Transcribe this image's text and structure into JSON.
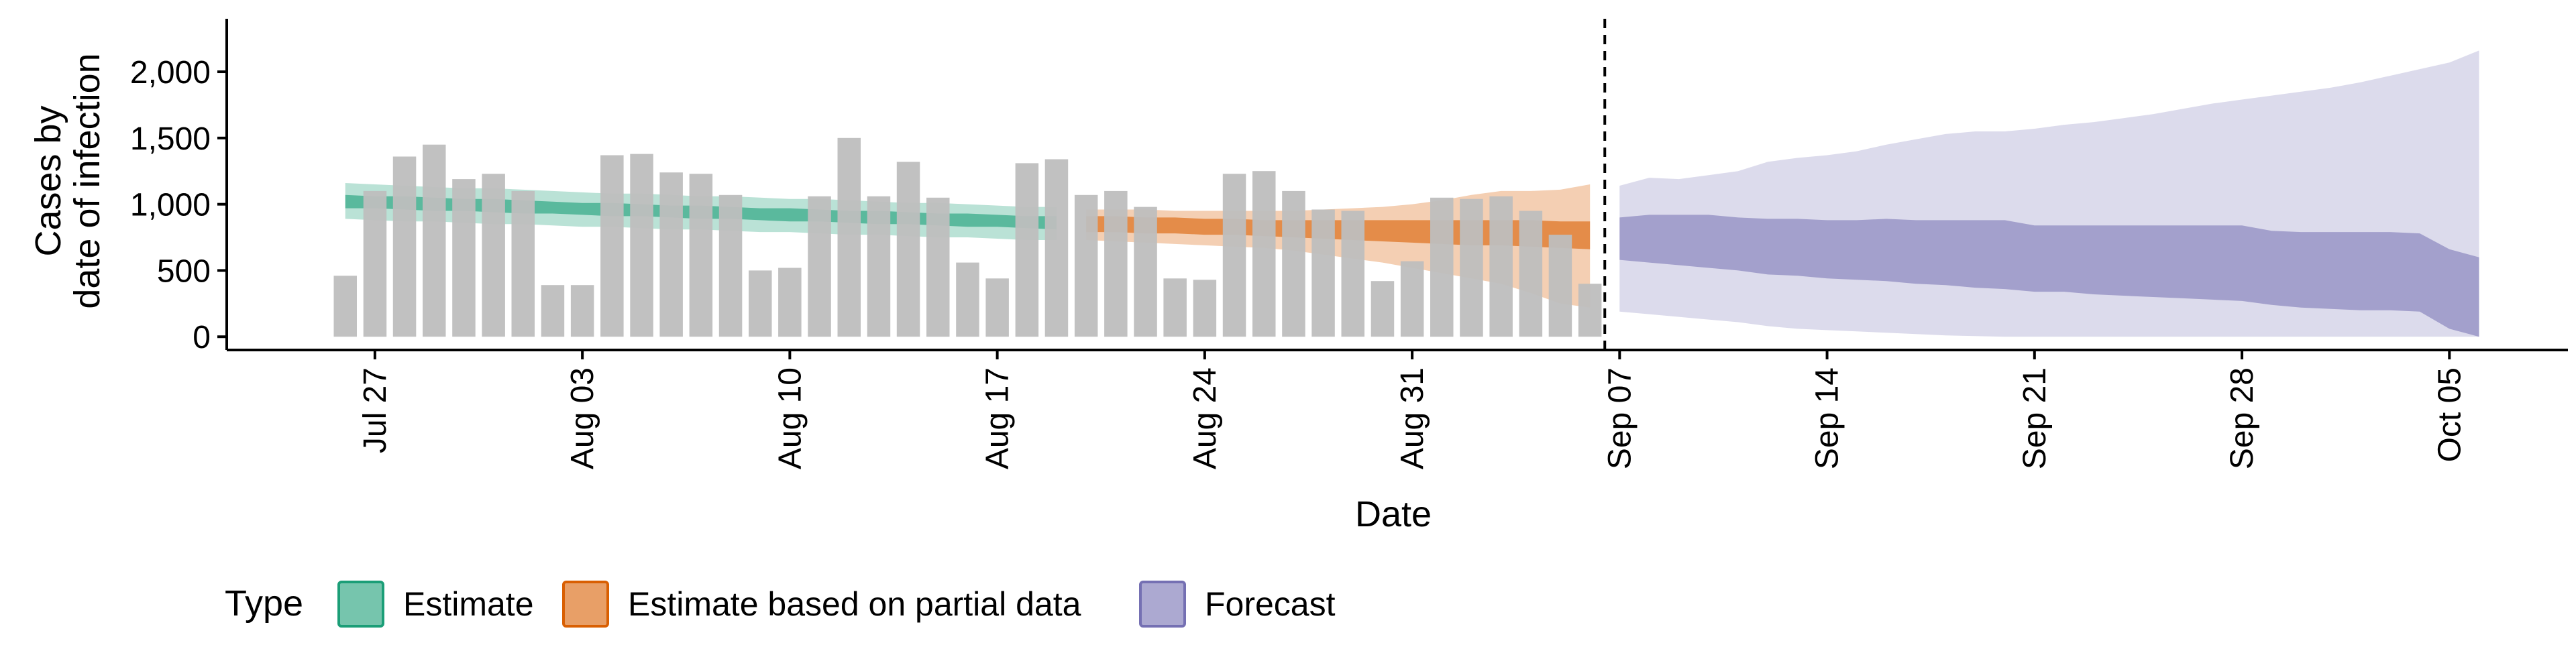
{
  "chart_data": {
    "type": "bar",
    "xlabel": "Date",
    "ylabel": "Cases by\ndate of infection",
    "ylim": [
      -100,
      2400
    ],
    "xlim": [
      "2025-07-22",
      "2025-10-09"
    ],
    "x_ticks": [
      {
        "date": "2025-07-27",
        "label": "Jul 27"
      },
      {
        "date": "2025-08-03",
        "label": "Aug 03"
      },
      {
        "date": "2025-08-10",
        "label": "Aug 10"
      },
      {
        "date": "2025-08-17",
        "label": "Aug 17"
      },
      {
        "date": "2025-08-24",
        "label": "Aug 24"
      },
      {
        "date": "2025-08-31",
        "label": "Aug 31"
      },
      {
        "date": "2025-09-07",
        "label": "Sep 07"
      },
      {
        "date": "2025-09-14",
        "label": "Sep 14"
      },
      {
        "date": "2025-09-21",
        "label": "Sep 21"
      },
      {
        "date": "2025-09-28",
        "label": "Sep 28"
      },
      {
        "date": "2025-10-05",
        "label": "Oct 05"
      }
    ],
    "y_ticks": [
      {
        "value": 0,
        "label": "0"
      },
      {
        "value": 500,
        "label": "500"
      },
      {
        "value": 1000,
        "label": "1,000"
      },
      {
        "value": 1500,
        "label": "1,500"
      },
      {
        "value": 2000,
        "label": "2,000"
      }
    ],
    "reported_cases": {
      "dates": [
        "2025-07-26",
        "2025-07-27",
        "2025-07-28",
        "2025-07-29",
        "2025-07-30",
        "2025-07-31",
        "2025-08-01",
        "2025-08-02",
        "2025-08-03",
        "2025-08-04",
        "2025-08-05",
        "2025-08-06",
        "2025-08-07",
        "2025-08-08",
        "2025-08-09",
        "2025-08-10",
        "2025-08-11",
        "2025-08-12",
        "2025-08-13",
        "2025-08-14",
        "2025-08-15",
        "2025-08-16",
        "2025-08-17",
        "2025-08-18",
        "2025-08-19",
        "2025-08-20",
        "2025-08-21",
        "2025-08-22",
        "2025-08-23",
        "2025-08-24",
        "2025-08-25",
        "2025-08-26",
        "2025-08-27",
        "2025-08-28",
        "2025-08-29",
        "2025-08-30",
        "2025-08-31",
        "2025-09-01",
        "2025-09-02",
        "2025-09-03",
        "2025-09-04",
        "2025-09-05",
        "2025-09-06"
      ],
      "values": [
        460,
        1100,
        1360,
        1450,
        1190,
        1230,
        1100,
        390,
        390,
        1370,
        1380,
        1240,
        1230,
        1070,
        500,
        520,
        1060,
        1500,
        1060,
        1320,
        1050,
        560,
        440,
        1310,
        1340,
        1070,
        1100,
        980,
        440,
        430,
        1230,
        1250,
        1100,
        960,
        950,
        420,
        570,
        1050,
        1040,
        1060,
        950,
        770,
        400
      ]
    },
    "series": [
      {
        "name": "Estimate",
        "color": "#1b9e77",
        "dates": [
          "2025-07-26",
          "2025-07-27",
          "2025-07-28",
          "2025-07-29",
          "2025-07-30",
          "2025-07-31",
          "2025-08-01",
          "2025-08-02",
          "2025-08-03",
          "2025-08-04",
          "2025-08-05",
          "2025-08-06",
          "2025-08-07",
          "2025-08-08",
          "2025-08-09",
          "2025-08-10",
          "2025-08-11",
          "2025-08-12",
          "2025-08-13",
          "2025-08-14",
          "2025-08-15",
          "2025-08-16",
          "2025-08-17",
          "2025-08-18",
          "2025-08-19"
        ],
        "upper90": [
          1160,
          1150,
          1140,
          1130,
          1120,
          1120,
          1110,
          1100,
          1090,
          1080,
          1080,
          1070,
          1060,
          1060,
          1050,
          1040,
          1040,
          1030,
          1020,
          1010,
          1010,
          1000,
          990,
          980,
          980
        ],
        "upper50": [
          1070,
          1060,
          1060,
          1050,
          1040,
          1040,
          1030,
          1020,
          1010,
          1010,
          1000,
          990,
          990,
          980,
          970,
          970,
          960,
          950,
          950,
          940,
          930,
          930,
          920,
          910,
          910
        ],
        "lower50": [
          970,
          970,
          960,
          950,
          950,
          940,
          930,
          930,
          920,
          910,
          910,
          900,
          890,
          890,
          880,
          870,
          870,
          860,
          850,
          850,
          840,
          830,
          830,
          820,
          810
        ],
        "lower90": [
          890,
          880,
          870,
          870,
          860,
          850,
          850,
          840,
          830,
          830,
          820,
          810,
          810,
          800,
          790,
          790,
          780,
          770,
          770,
          760,
          750,
          750,
          740,
          730,
          730
        ]
      },
      {
        "name": "Estimate based on partial data",
        "color": "#d95f02",
        "dates": [
          "2025-08-20",
          "2025-08-21",
          "2025-08-22",
          "2025-08-23",
          "2025-08-24",
          "2025-08-25",
          "2025-08-26",
          "2025-08-27",
          "2025-08-28",
          "2025-08-29",
          "2025-08-30",
          "2025-08-31",
          "2025-09-01",
          "2025-09-02",
          "2025-09-03",
          "2025-09-04",
          "2025-09-05",
          "2025-09-06"
        ],
        "upper90": [
          960,
          960,
          960,
          950,
          950,
          950,
          950,
          950,
          960,
          970,
          980,
          1000,
          1030,
          1070,
          1100,
          1100,
          1110,
          1150
        ],
        "upper50": [
          910,
          910,
          900,
          900,
          890,
          890,
          880,
          880,
          880,
          880,
          880,
          880,
          880,
          880,
          880,
          880,
          870,
          870
        ],
        "lower50": [
          790,
          790,
          780,
          780,
          770,
          770,
          760,
          750,
          740,
          730,
          720,
          710,
          700,
          690,
          690,
          680,
          670,
          660
        ],
        "lower90": [
          730,
          720,
          710,
          700,
          690,
          680,
          670,
          650,
          620,
          590,
          560,
          520,
          480,
          440,
          400,
          330,
          250,
          220
        ]
      },
      {
        "name": "Forecast",
        "color": "#7570b3",
        "dates": [
          "2025-09-07",
          "2025-09-08",
          "2025-09-09",
          "2025-09-10",
          "2025-09-11",
          "2025-09-12",
          "2025-09-13",
          "2025-09-14",
          "2025-09-15",
          "2025-09-16",
          "2025-09-17",
          "2025-09-18",
          "2025-09-19",
          "2025-09-20",
          "2025-09-21",
          "2025-09-22",
          "2025-09-23",
          "2025-09-24",
          "2025-09-25",
          "2025-09-26",
          "2025-09-27",
          "2025-09-28",
          "2025-09-29",
          "2025-09-30",
          "2025-10-01",
          "2025-10-02",
          "2025-10-03",
          "2025-10-04",
          "2025-10-05",
          "2025-10-06"
        ],
        "upper90": [
          1140,
          1200,
          1190,
          1220,
          1250,
          1320,
          1350,
          1370,
          1400,
          1450,
          1490,
          1530,
          1550,
          1550,
          1570,
          1600,
          1620,
          1650,
          1680,
          1720,
          1760,
          1790,
          1820,
          1850,
          1880,
          1920,
          1970,
          2020,
          2070,
          2160
        ],
        "upper50": [
          900,
          920,
          920,
          920,
          900,
          890,
          890,
          880,
          880,
          890,
          880,
          880,
          880,
          880,
          840,
          840,
          840,
          840,
          840,
          840,
          840,
          840,
          800,
          790,
          790,
          790,
          790,
          780,
          660,
          600
        ],
        "lower50": [
          580,
          560,
          540,
          520,
          500,
          470,
          460,
          440,
          430,
          420,
          400,
          390,
          370,
          360,
          340,
          340,
          320,
          310,
          300,
          290,
          280,
          270,
          240,
          220,
          210,
          200,
          200,
          190,
          60,
          0
        ],
        "lower90": [
          190,
          170,
          150,
          130,
          110,
          80,
          60,
          50,
          40,
          30,
          20,
          10,
          5,
          0,
          0,
          0,
          0,
          0,
          0,
          0,
          0,
          0,
          0,
          0,
          0,
          0,
          0,
          0,
          0,
          0
        ]
      }
    ],
    "vline_date": "2025-09-06",
    "legend": {
      "position": "bottom",
      "title": "Type",
      "items": [
        "Estimate",
        "Estimate based on partial data",
        "Forecast"
      ]
    }
  },
  "colors": {
    "estimate": "#1b9e77",
    "partial": "#d95f02",
    "forecast": "#7570b3",
    "bars": "#bebebe"
  }
}
